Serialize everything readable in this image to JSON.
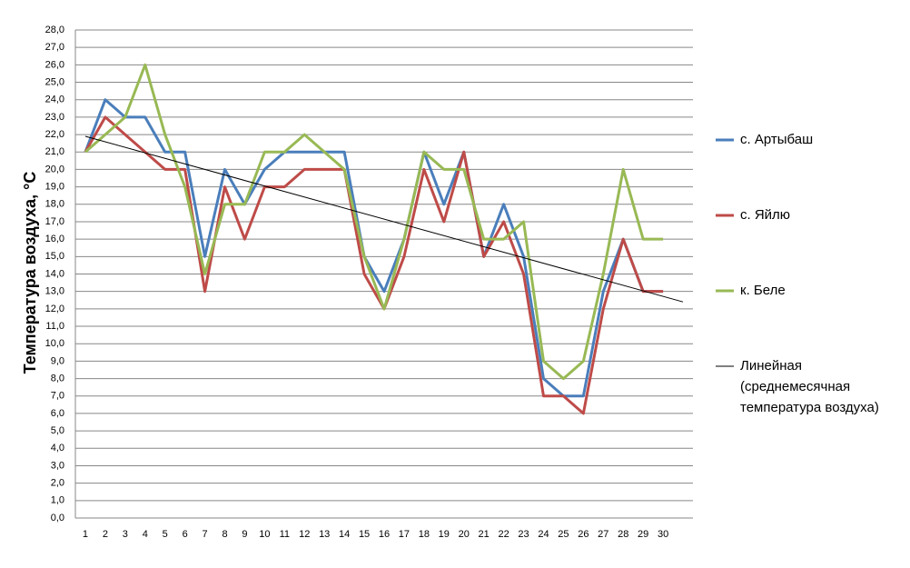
{
  "chart_data": {
    "type": "line",
    "y_label": "Температура воздуха, °С",
    "x": [
      1,
      2,
      3,
      4,
      5,
      6,
      7,
      8,
      9,
      10,
      11,
      12,
      13,
      14,
      15,
      16,
      17,
      18,
      19,
      20,
      21,
      22,
      23,
      24,
      25,
      26,
      27,
      28,
      29,
      30
    ],
    "xlim": [
      0.5,
      31.5
    ],
    "xticks": [
      1,
      2,
      3,
      4,
      5,
      6,
      7,
      8,
      9,
      10,
      11,
      12,
      13,
      14,
      15,
      16,
      17,
      18,
      19,
      20,
      21,
      22,
      23,
      24,
      25,
      26,
      27,
      28,
      29,
      30
    ],
    "ylim": [
      0,
      28
    ],
    "yticks": [
      {
        "value": 0,
        "label": "0,0"
      },
      {
        "value": 1,
        "label": "1,0"
      },
      {
        "value": 2,
        "label": "2,0"
      },
      {
        "value": 3,
        "label": "3,0"
      },
      {
        "value": 4,
        "label": "4,0"
      },
      {
        "value": 5,
        "label": "5,0"
      },
      {
        "value": 6,
        "label": "6,0"
      },
      {
        "value": 7,
        "label": "7,0"
      },
      {
        "value": 8,
        "label": "8,0"
      },
      {
        "value": 9,
        "label": "9,0"
      },
      {
        "value": 10,
        "label": "10,0"
      },
      {
        "value": 11,
        "label": "11,0"
      },
      {
        "value": 12,
        "label": "12,0"
      },
      {
        "value": 13,
        "label": "13,0"
      },
      {
        "value": 14,
        "label": "14,0"
      },
      {
        "value": 15,
        "label": "15,0"
      },
      {
        "value": 16,
        "label": "16,0"
      },
      {
        "value": 17,
        "label": "17,0"
      },
      {
        "value": 18,
        "label": "18,0"
      },
      {
        "value": 19,
        "label": "19,0"
      },
      {
        "value": 20,
        "label": "20,0"
      },
      {
        "value": 21,
        "label": "21,0"
      },
      {
        "value": 22,
        "label": "22,0"
      },
      {
        "value": 23,
        "label": "23,0"
      },
      {
        "value": 24,
        "label": "24,0"
      },
      {
        "value": 25,
        "label": "25,0"
      },
      {
        "value": 26,
        "label": "26,0"
      },
      {
        "value": 27,
        "label": "27,0"
      },
      {
        "value": 28,
        "label": "28,0"
      }
    ],
    "grid": true,
    "legend": "right",
    "series": [
      {
        "name": "с. Артыбаш",
        "color": "#4a7ebb",
        "values": [
          21,
          24,
          23,
          23,
          21,
          21,
          15,
          20,
          18,
          20,
          21,
          21,
          21,
          21,
          15,
          13,
          16,
          21,
          18,
          21,
          15,
          18,
          15,
          8,
          7,
          7,
          13,
          16,
          13,
          13
        ]
      },
      {
        "name": "с. Яйлю",
        "color": "#be4b48",
        "values": [
          21,
          23,
          22,
          21,
          20,
          20,
          13,
          19,
          16,
          19,
          19,
          20,
          20,
          20,
          14,
          12,
          15,
          20,
          17,
          21,
          15,
          17,
          14,
          7,
          7,
          6,
          12,
          16,
          13,
          13
        ]
      },
      {
        "name": "к. Беле",
        "color": "#98b954",
        "values": [
          21,
          22,
          23,
          26,
          22,
          19,
          14,
          18,
          18,
          21,
          21,
          22,
          21,
          20,
          15,
          12,
          16,
          21,
          20,
          20,
          16,
          16,
          17,
          9,
          8,
          9,
          14,
          20,
          16,
          16
        ]
      }
    ],
    "trendline": {
      "name_lines": [
        "Линейная",
        "(среднемесячная",
        "температура воздуха)"
      ],
      "color": "#000000",
      "x": [
        1,
        31
      ],
      "values": [
        21.9,
        12.4
      ]
    }
  }
}
